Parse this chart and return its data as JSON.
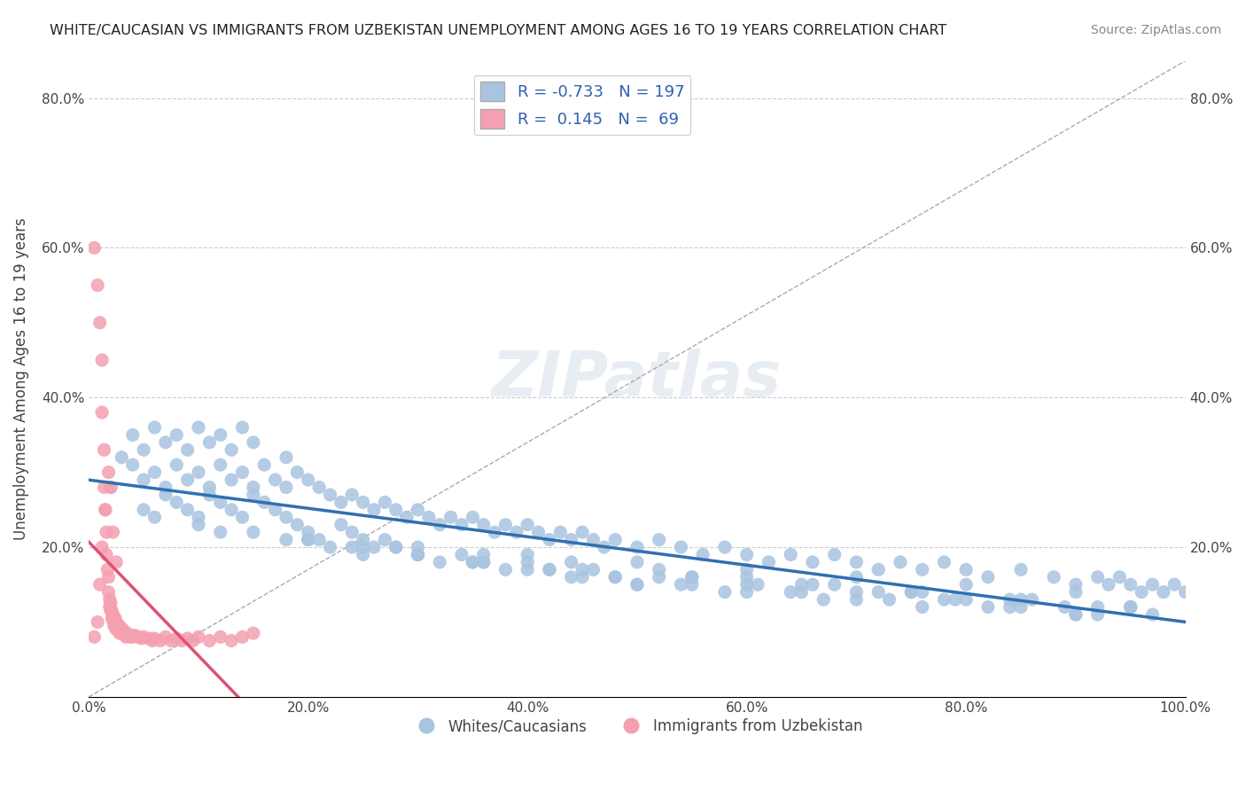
{
  "title": "WHITE/CAUCASIAN VS IMMIGRANTS FROM UZBEKISTAN UNEMPLOYMENT AMONG AGES 16 TO 19 YEARS CORRELATION CHART",
  "source": "Source: ZipAtlas.com",
  "xlabel_bottom": "",
  "ylabel": "Unemployment Among Ages 16 to 19 years",
  "xmin": 0.0,
  "xmax": 1.0,
  "ymin": 0.0,
  "ymax": 0.85,
  "xtick_labels": [
    "0.0%",
    "20.0%",
    "40.0%",
    "60.0%",
    "80.0%",
    "100.0%"
  ],
  "xtick_vals": [
    0.0,
    0.2,
    0.4,
    0.6,
    0.8,
    1.0
  ],
  "ytick_labels": [
    "20.0%",
    "40.0%",
    "60.0%",
    "80.0%"
  ],
  "ytick_vals": [
    0.2,
    0.4,
    0.6,
    0.8
  ],
  "right_ytick_labels": [
    "20.0%",
    "40.0%",
    "60.0%",
    "80.0%"
  ],
  "right_ytick_vals": [
    0.2,
    0.4,
    0.6,
    0.8
  ],
  "blue_R": "-0.733",
  "blue_N": "197",
  "pink_R": "0.145",
  "pink_N": "69",
  "blue_color": "#a8c4e0",
  "pink_color": "#f4a0b0",
  "blue_line_color": "#3070b0",
  "pink_line_color": "#e05070",
  "legend_blue_label": "Whites/Caucasians",
  "legend_pink_label": "Immigrants from Uzbekistan",
  "watermark": "ZIPatlas",
  "blue_scatter_x": [
    0.02,
    0.03,
    0.04,
    0.04,
    0.05,
    0.05,
    0.06,
    0.06,
    0.07,
    0.07,
    0.08,
    0.08,
    0.09,
    0.09,
    0.1,
    0.1,
    0.11,
    0.11,
    0.12,
    0.12,
    0.13,
    0.13,
    0.14,
    0.14,
    0.15,
    0.15,
    0.16,
    0.17,
    0.18,
    0.18,
    0.19,
    0.2,
    0.21,
    0.22,
    0.23,
    0.24,
    0.25,
    0.26,
    0.27,
    0.28,
    0.29,
    0.3,
    0.31,
    0.32,
    0.33,
    0.34,
    0.35,
    0.36,
    0.37,
    0.38,
    0.39,
    0.4,
    0.41,
    0.42,
    0.43,
    0.44,
    0.45,
    0.46,
    0.47,
    0.48,
    0.5,
    0.52,
    0.54,
    0.56,
    0.58,
    0.6,
    0.62,
    0.64,
    0.66,
    0.68,
    0.7,
    0.72,
    0.74,
    0.76,
    0.78,
    0.8,
    0.82,
    0.85,
    0.88,
    0.9,
    0.92,
    0.93,
    0.94,
    0.95,
    0.96,
    0.97,
    0.98,
    0.99,
    1.0,
    0.05,
    0.06,
    0.07,
    0.08,
    0.09,
    0.1,
    0.11,
    0.12,
    0.13,
    0.14,
    0.15,
    0.16,
    0.17,
    0.18,
    0.19,
    0.2,
    0.21,
    0.22,
    0.23,
    0.24,
    0.25,
    0.26,
    0.27,
    0.28,
    0.3,
    0.32,
    0.34,
    0.36,
    0.38,
    0.4,
    0.42,
    0.44,
    0.46,
    0.48,
    0.5,
    0.52,
    0.55,
    0.58,
    0.61,
    0.64,
    0.67,
    0.7,
    0.73,
    0.76,
    0.79,
    0.82,
    0.86,
    0.89,
    0.92,
    0.95,
    0.97,
    0.1,
    0.15,
    0.2,
    0.25,
    0.3,
    0.35,
    0.4,
    0.45,
    0.5,
    0.55,
    0.6,
    0.65,
    0.7,
    0.75,
    0.8,
    0.85,
    0.9,
    0.95,
    0.12,
    0.18,
    0.24,
    0.3,
    0.36,
    0.42,
    0.48,
    0.54,
    0.6,
    0.66,
    0.72,
    0.78,
    0.84,
    0.9,
    0.2,
    0.28,
    0.36,
    0.44,
    0.52,
    0.6,
    0.68,
    0.76,
    0.84,
    0.92,
    0.3,
    0.4,
    0.5,
    0.6,
    0.7,
    0.8,
    0.9,
    0.25,
    0.35,
    0.45,
    0.55,
    0.65,
    0.75,
    0.85,
    0.95
  ],
  "blue_scatter_y": [
    0.28,
    0.32,
    0.31,
    0.35,
    0.29,
    0.33,
    0.3,
    0.36,
    0.28,
    0.34,
    0.31,
    0.35,
    0.29,
    0.33,
    0.3,
    0.36,
    0.28,
    0.34,
    0.31,
    0.35,
    0.29,
    0.33,
    0.3,
    0.36,
    0.28,
    0.34,
    0.31,
    0.29,
    0.28,
    0.32,
    0.3,
    0.29,
    0.28,
    0.27,
    0.26,
    0.27,
    0.26,
    0.25,
    0.26,
    0.25,
    0.24,
    0.25,
    0.24,
    0.23,
    0.24,
    0.23,
    0.24,
    0.23,
    0.22,
    0.23,
    0.22,
    0.23,
    0.22,
    0.21,
    0.22,
    0.21,
    0.22,
    0.21,
    0.2,
    0.21,
    0.2,
    0.21,
    0.2,
    0.19,
    0.2,
    0.19,
    0.18,
    0.19,
    0.18,
    0.19,
    0.18,
    0.17,
    0.18,
    0.17,
    0.18,
    0.17,
    0.16,
    0.17,
    0.16,
    0.15,
    0.16,
    0.15,
    0.16,
    0.15,
    0.14,
    0.15,
    0.14,
    0.15,
    0.14,
    0.25,
    0.24,
    0.27,
    0.26,
    0.25,
    0.24,
    0.27,
    0.26,
    0.25,
    0.24,
    0.27,
    0.26,
    0.25,
    0.24,
    0.23,
    0.22,
    0.21,
    0.2,
    0.23,
    0.22,
    0.21,
    0.2,
    0.21,
    0.2,
    0.19,
    0.18,
    0.19,
    0.18,
    0.17,
    0.18,
    0.17,
    0.16,
    0.17,
    0.16,
    0.15,
    0.16,
    0.15,
    0.14,
    0.15,
    0.14,
    0.13,
    0.14,
    0.13,
    0.12,
    0.13,
    0.12,
    0.13,
    0.12,
    0.11,
    0.12,
    0.11,
    0.23,
    0.22,
    0.21,
    0.2,
    0.19,
    0.18,
    0.17,
    0.16,
    0.15,
    0.16,
    0.15,
    0.14,
    0.13,
    0.14,
    0.13,
    0.12,
    0.11,
    0.12,
    0.22,
    0.21,
    0.2,
    0.19,
    0.18,
    0.17,
    0.16,
    0.15,
    0.14,
    0.15,
    0.14,
    0.13,
    0.12,
    0.11,
    0.21,
    0.2,
    0.19,
    0.18,
    0.17,
    0.16,
    0.15,
    0.14,
    0.13,
    0.12,
    0.2,
    0.19,
    0.18,
    0.17,
    0.16,
    0.15,
    0.14,
    0.19,
    0.18,
    0.17,
    0.16,
    0.15,
    0.14,
    0.13,
    0.12
  ],
  "pink_scatter_x": [
    0.005,
    0.008,
    0.01,
    0.012,
    0.012,
    0.014,
    0.014,
    0.015,
    0.016,
    0.016,
    0.017,
    0.018,
    0.018,
    0.019,
    0.019,
    0.02,
    0.02,
    0.021,
    0.021,
    0.022,
    0.022,
    0.023,
    0.023,
    0.024,
    0.024,
    0.025,
    0.025,
    0.026,
    0.027,
    0.028,
    0.028,
    0.029,
    0.03,
    0.031,
    0.032,
    0.033,
    0.034,
    0.035,
    0.038,
    0.04,
    0.042,
    0.045,
    0.048,
    0.05,
    0.055,
    0.058,
    0.06,
    0.065,
    0.07,
    0.075,
    0.08,
    0.085,
    0.09,
    0.095,
    0.1,
    0.11,
    0.12,
    0.13,
    0.14,
    0.15,
    0.005,
    0.008,
    0.01,
    0.012,
    0.015,
    0.018,
    0.02,
    0.022,
    0.025
  ],
  "pink_scatter_y": [
    0.6,
    0.55,
    0.5,
    0.45,
    0.38,
    0.33,
    0.28,
    0.25,
    0.22,
    0.19,
    0.17,
    0.16,
    0.14,
    0.13,
    0.12,
    0.125,
    0.115,
    0.115,
    0.105,
    0.11,
    0.105,
    0.1,
    0.095,
    0.105,
    0.095,
    0.1,
    0.09,
    0.095,
    0.09,
    0.095,
    0.085,
    0.09,
    0.085,
    0.09,
    0.085,
    0.082,
    0.08,
    0.085,
    0.08,
    0.08,
    0.082,
    0.08,
    0.078,
    0.08,
    0.078,
    0.075,
    0.078,
    0.075,
    0.08,
    0.075,
    0.078,
    0.075,
    0.078,
    0.075,
    0.08,
    0.075,
    0.08,
    0.075,
    0.08,
    0.085,
    0.08,
    0.1,
    0.15,
    0.2,
    0.25,
    0.3,
    0.28,
    0.22,
    0.18
  ]
}
